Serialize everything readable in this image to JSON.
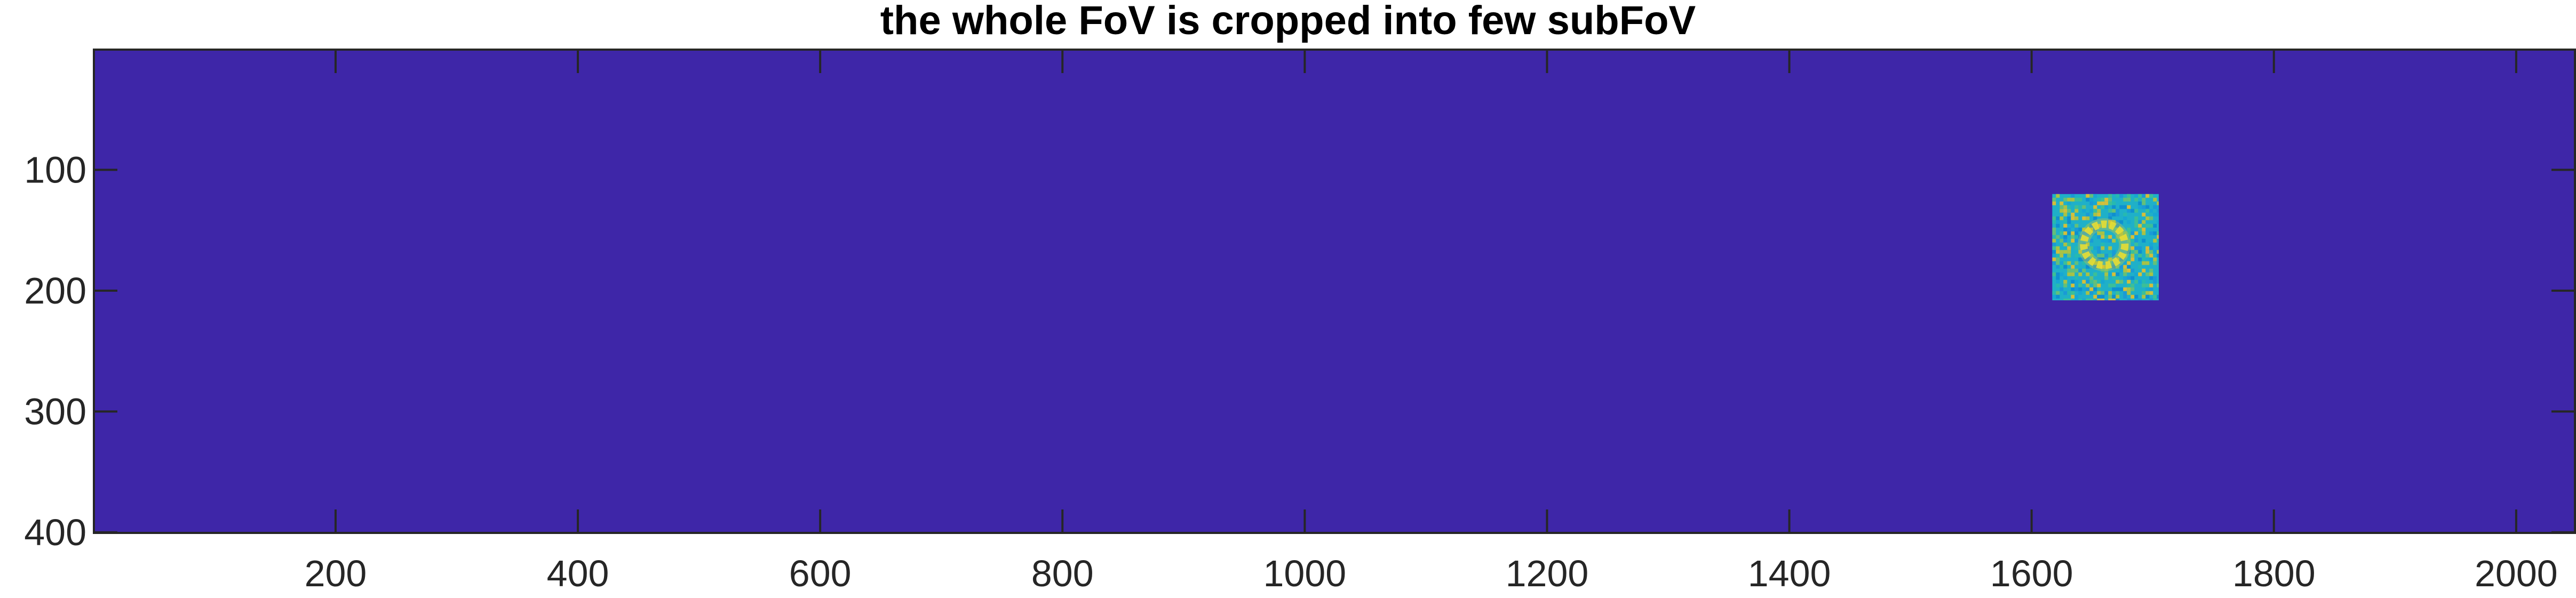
{
  "chart_data": {
    "type": "heatmap",
    "title": "the whole FoV is cropped into few subFoV",
    "xlabel": "",
    "ylabel": "",
    "xlim": [
      0.5,
      2048.5
    ],
    "ylim": [
      0.5,
      400.5
    ],
    "y_reversed": true,
    "colormap": "parula",
    "background_value_color": "#3e26a8",
    "xticks": [
      200,
      400,
      600,
      800,
      1000,
      1200,
      1400,
      1600,
      1800,
      2000
    ],
    "xtick_labels": [
      "200",
      "400",
      "600",
      "800",
      "1000",
      "1200",
      "1400",
      "1600",
      "1800",
      "2000"
    ],
    "yticks": [
      100,
      200,
      300,
      400
    ],
    "ytick_labels": [
      "100",
      "200",
      "300",
      "400"
    ],
    "subfov": {
      "x_range": [
        1617,
        1705
      ],
      "y_range": [
        120,
        208
      ],
      "ring_center": [
        1660,
        162
      ],
      "ring_radius": 17,
      "base_color": "#1fb0c8",
      "ring_color": "#f0e830"
    }
  }
}
